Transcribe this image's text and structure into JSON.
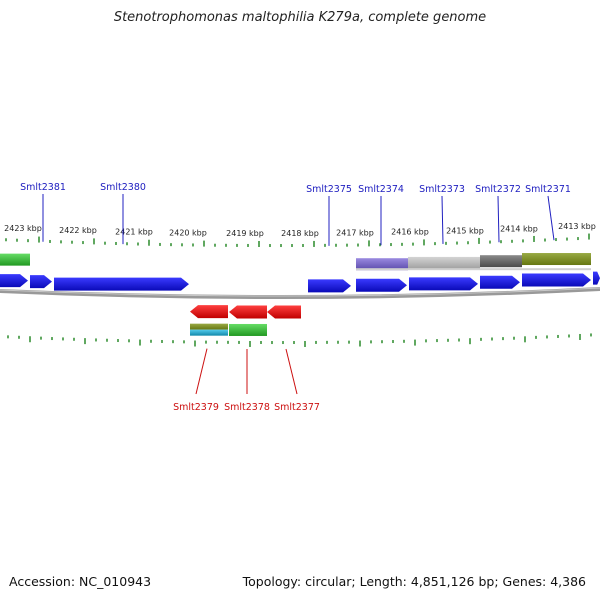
{
  "title": "Stenotrophomonas maltophilia K279a, complete genome",
  "footer": {
    "accession": "Accession: NC_010943",
    "topology": "Topology: circular; Length: 4,851,126 bp; Genes: 4,386"
  },
  "colors": {
    "forward_gene": "#1010e0",
    "reverse_gene": "#e81010",
    "forward_label": "#2020c0",
    "reverse_label": "#cc1010",
    "tick": "#2a8a2a",
    "backbone": "#888888",
    "cog_green": "#33bb33",
    "cog_purple": "#7766cc",
    "cog_lightgray": "#bbbbbb",
    "cog_darkgray": "#666666",
    "cog_olive": "#778822",
    "cog_cyan": "#22aacc"
  },
  "ruler": [
    "2423 kbp",
    "2422 kbp",
    "2421 kbp",
    "2420 kbp",
    "2419 kbp",
    "2418 kbp",
    "2417 kbp",
    "2416 kbp",
    "2415 kbp",
    "2414 kbp",
    "2413 kbp"
  ],
  "forward_labels": [
    "Smlt2381",
    "Smlt2380",
    "Smlt2375",
    "Smlt2374",
    "Smlt2373",
    "Smlt2372",
    "Smlt2371"
  ],
  "reverse_labels": [
    "Smlt2379",
    "Smlt2378",
    "Smlt2377"
  ]
}
